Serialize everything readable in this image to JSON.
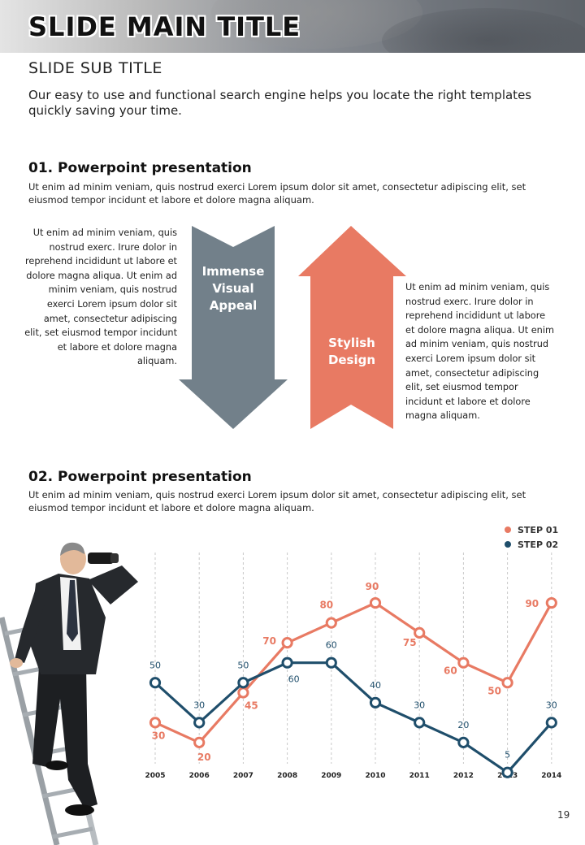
{
  "header": {
    "title": "SLIDE MAIN TITLE",
    "subtitle": "SLIDE SUB TITLE",
    "intro": "Our easy to use and functional search engine helps you locate the right templates quickly saving your time."
  },
  "section1": {
    "heading": "01. Powerpoint presentation",
    "body": "Ut enim ad minim veniam, quis nostrud exerci  Lorem ipsum dolor sit amet, consectetur adipiscing elit, set eiusmod tempor incidunt et labore et dolore magna aliquam.",
    "left_text": "Ut enim ad minim veniam, quis nostrud exerc. Irure dolor in reprehend incididunt ut labore et dolore magna aliqua. Ut enim ad minim veniam, quis nostrud exerci Lorem ipsum dolor sit amet, consectetur adipiscing elit, set eiusmod tempor incidunt et labore et dolore magna aliquam.",
    "right_text": "Ut enim ad minim veniam, quis nostrud exerc. Irure dolor in reprehend incididunt ut labore et dolore magna aliqua. Ut enim ad minim veniam, quis nostrud exerci Lorem ipsum dolor sit amet, consectetur adipiscing elit, set eiusmod tempor incidunt et labore et dolore magna aliquam.",
    "down_arrow_label": "Immense Visual Appeal",
    "up_arrow_label": "Stylish Design",
    "colors": {
      "down_arrow": "#72808a",
      "up_arrow": "#e87a63"
    }
  },
  "section2": {
    "heading": "02. Powerpoint presentation",
    "body": "Ut enim ad minim veniam, quis nostrud exerci  Lorem ipsum dolor sit amet, consectetur adipiscing elit, set eiusmod tempor incidunt et labore et dolore magna aliquam."
  },
  "chart_data": {
    "type": "line",
    "x": [
      "2005",
      "2006",
      "2007",
      "2008",
      "2009",
      "2010",
      "2011",
      "2012",
      "2013",
      "2014"
    ],
    "series": [
      {
        "name": "STEP 01",
        "color": "#e87a63",
        "values": [
          30,
          20,
          45,
          70,
          80,
          90,
          75,
          60,
          50,
          90
        ]
      },
      {
        "name": "STEP 02",
        "color": "#1f4e6b",
        "values": [
          50,
          30,
          50,
          60,
          60,
          40,
          30,
          20,
          5,
          30
        ]
      }
    ],
    "ylim": [
      0,
      100
    ],
    "legend_position": "top-right",
    "grid": "vertical-dashed",
    "data_labels": true
  },
  "illustration": {
    "icon": "businessman-with-binoculars-on-ladder"
  },
  "footer": {
    "page_number": "19"
  }
}
